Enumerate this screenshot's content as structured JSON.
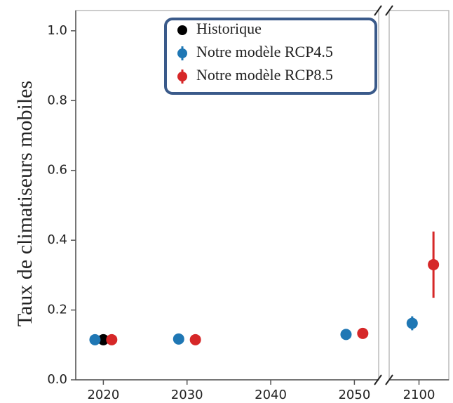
{
  "chart_data": {
    "type": "scatter",
    "ylabel": "Taux de climatiseurs mobiles",
    "ylim": [
      0,
      1.05
    ],
    "yticks": [
      {
        "value": 0,
        "label": "0.0"
      },
      0.2,
      0.4,
      0.6,
      0.8,
      {
        "value": 1,
        "label": "1.0"
      }
    ],
    "x_segments": [
      {
        "xlim": [
          2016.7,
          2052.9
        ],
        "xticks": [
          2020,
          2030,
          2040,
          2050
        ]
      },
      {
        "xlim": [
          2096.5,
          2103.5
        ],
        "xticks": [
          2100
        ]
      }
    ],
    "legend": "upper center",
    "series": [
      {
        "name": "Historique",
        "color": "#000000",
        "x": [
          2020
        ],
        "values": [
          0.115
        ]
      },
      {
        "name": "Notre modèle RCP4.5",
        "color": "#1f77b4",
        "x": [
          2019,
          2029,
          2049,
          2099.2
        ],
        "values": [
          0.115,
          0.117,
          0.13,
          0.162
        ],
        "errors": [
          0.005,
          0.005,
          0.008,
          0.02
        ]
      },
      {
        "name": "Notre modèle RCP8.5",
        "color": "#d62728",
        "x": [
          2021,
          2031,
          2051,
          2101.7
        ],
        "values": [
          0.115,
          0.115,
          0.133,
          0.33
        ],
        "errors": [
          0.006,
          0.005,
          0.008,
          0.095
        ]
      }
    ]
  }
}
